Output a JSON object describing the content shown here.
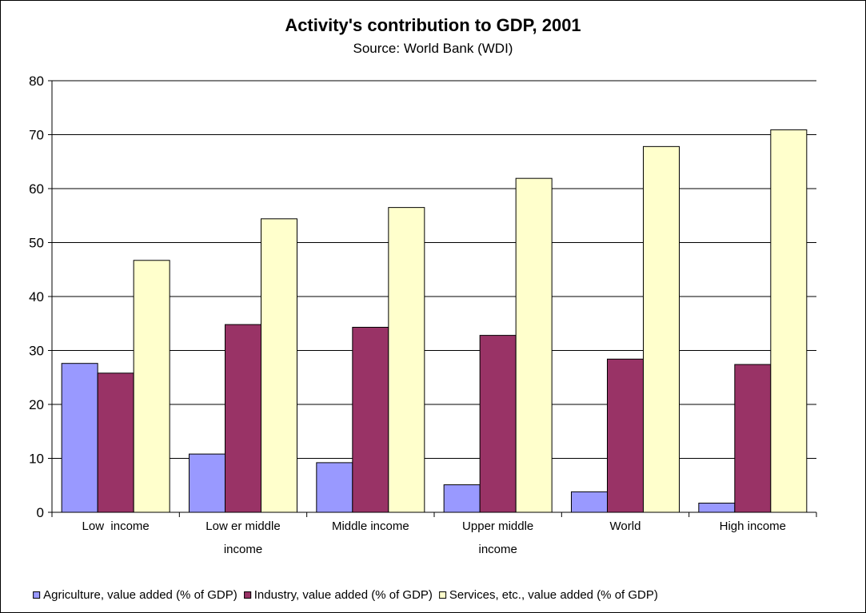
{
  "chart_data": {
    "type": "bar",
    "title": "Activity's contribution to GDP, 2001",
    "subtitle": "Source: World Bank (WDI)",
    "xlabel": "",
    "ylabel": "",
    "ylim": [
      0,
      80
    ],
    "yticks": [
      0,
      10,
      20,
      30,
      40,
      50,
      60,
      70,
      80
    ],
    "grid": true,
    "legend_position": "bottom",
    "categories": [
      [
        "Low  income"
      ],
      [
        "Low er middle",
        "income"
      ],
      [
        "Middle income"
      ],
      [
        "Upper middle",
        "income"
      ],
      [
        "World"
      ],
      [
        "High income"
      ]
    ],
    "series": [
      {
        "name": "Agriculture, value added (% of GDP)",
        "color": "#9999ff",
        "values": [
          27.6,
          10.8,
          9.2,
          5.1,
          3.8,
          1.7
        ]
      },
      {
        "name": "Industry, value added (% of GDP)",
        "color": "#993366",
        "values": [
          25.8,
          34.8,
          34.3,
          32.8,
          28.4,
          27.4
        ]
      },
      {
        "name": "Services, etc., value added (% of GDP)",
        "color": "#ffffcc",
        "values": [
          46.7,
          54.4,
          56.5,
          61.9,
          67.8,
          70.9
        ]
      }
    ]
  }
}
